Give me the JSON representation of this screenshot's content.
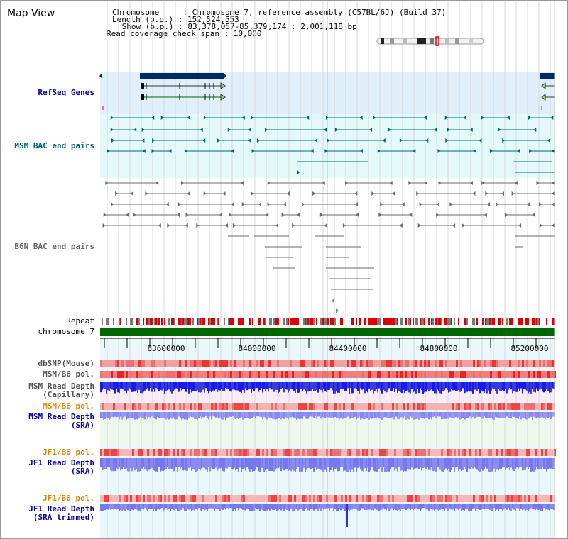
{
  "panel": {
    "title": "Map View"
  },
  "info": {
    "line1": "Chromosome     : Chromosome 7, reference assembly (C57BL/6J) (Build 37)",
    "line2": "Length (b.p.) : 152,524,553",
    "line3": " Show (b.p.) : 83,378,057-85,379,174 : 2,001,118 bp",
    "line4": "Read coverage check span : 10,000"
  },
  "track_labels": {
    "refseq": "RefSeq Genes",
    "msm_bac": "MSM BAC end pairs",
    "b6n_bac": "B6N BAC end pairs",
    "repeat": "Repeat",
    "chromosome": "chromosome 7",
    "dbsnp": "dbSNP(Mouse)",
    "msm_b6_pol_1": "MSM/B6 pol.",
    "msm_depth_cap_1": "MSM Read Depth",
    "msm_depth_cap_2": "(Capillary)",
    "msm_b6_pol_2": "MSM/B6 pol.",
    "msm_depth_sra_1": "MSM Read Depth",
    "msm_depth_sra_2": "(SRA)",
    "jf1_b6_pol_1": "JF1/B6 pol.",
    "jf1_depth_sra_1": "JF1 Read Depth",
    "jf1_depth_sra_2": "(SRA)",
    "jf1_b6_pol_2": "JF1/B6 pol.",
    "jf1_depth_trim_1": "JF1 Read Depth",
    "jf1_depth_trim_2": "(SRA trimmed)"
  },
  "ruler": {
    "ticks": [
      "83600000",
      "84000000",
      "84400000",
      "84800000",
      "85200000"
    ]
  },
  "colors": {
    "refseq_bg": "#dff0fa",
    "msm_bg": "#e4fafa",
    "light_bg": "#eaf8fb",
    "gene_dark": "#002a66",
    "msm_pair": "#006677",
    "b6n_pair": "#6a6a6a",
    "chromosome": "#006600",
    "repeat": "#dd0000",
    "msm_label": "#006677",
    "blue_label": "#0000aa",
    "orange_label": "#dd8800"
  }
}
